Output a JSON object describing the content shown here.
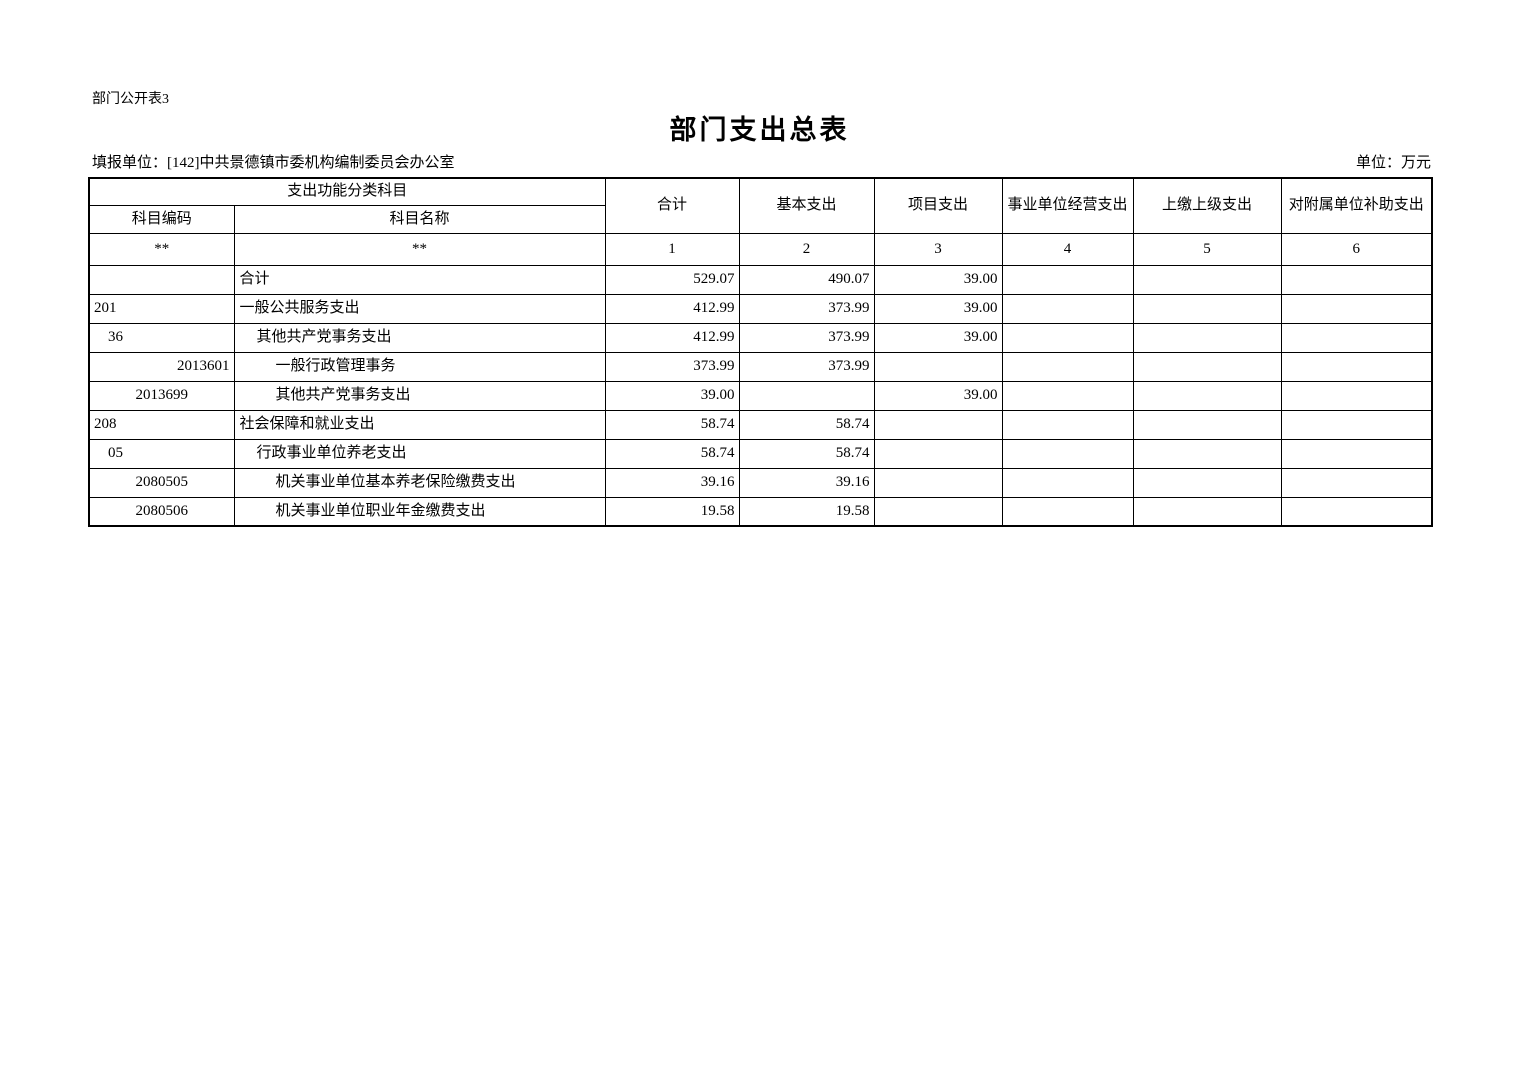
{
  "page": {
    "doc_note": "部门公开表3",
    "title": "部门支出总表",
    "filler_label": "填报单位：[142]中共景德镇市委机构编制委员会办公室",
    "unit_label": "单位：万元"
  },
  "table": {
    "header": {
      "func_group": "支出功能分类科目",
      "code": "科目编码",
      "name": "科目名称",
      "total": "合计",
      "basic": "基本支出",
      "project": "项目支出",
      "operating": "事业单位经营支出",
      "upper": "上缴上级支出",
      "subsidy": "对附属单位补助支出"
    },
    "index_row": [
      "**",
      "**",
      "1",
      "2",
      "3",
      "4",
      "5",
      "6"
    ],
    "rows": [
      {
        "code": "",
        "name": "合计",
        "indent": 0,
        "code_align": "left",
        "values": [
          "529.07",
          "490.07",
          "39.00",
          "",
          "",
          ""
        ]
      },
      {
        "code": "201",
        "name": "一般公共服务支出",
        "indent": 0,
        "code_align": "left",
        "values": [
          "412.99",
          "373.99",
          "39.00",
          "",
          "",
          ""
        ]
      },
      {
        "code": "36",
        "name": "其他共产党事务支出",
        "indent": 1,
        "code_align": "indent",
        "values": [
          "412.99",
          "373.99",
          "39.00",
          "",
          "",
          ""
        ]
      },
      {
        "code": "2013601",
        "name": "一般行政管理事务",
        "indent": 2,
        "code_align": "right",
        "values": [
          "373.99",
          "373.99",
          "",
          "",
          "",
          ""
        ]
      },
      {
        "code": "2013699",
        "name": "其他共产党事务支出",
        "indent": 2,
        "code_align": "center",
        "values": [
          "39.00",
          "",
          "39.00",
          "",
          "",
          ""
        ]
      },
      {
        "code": "208",
        "name": "社会保障和就业支出",
        "indent": 0,
        "code_align": "left",
        "values": [
          "58.74",
          "58.74",
          "",
          "",
          "",
          ""
        ]
      },
      {
        "code": "05",
        "name": "行政事业单位养老支出",
        "indent": 1,
        "code_align": "indent",
        "values": [
          "58.74",
          "58.74",
          "",
          "",
          "",
          ""
        ]
      },
      {
        "code": "2080505",
        "name": "机关事业单位基本养老保险缴费支出",
        "indent": 2,
        "code_align": "center",
        "values": [
          "39.16",
          "39.16",
          "",
          "",
          "",
          ""
        ]
      },
      {
        "code": "2080506",
        "name": "机关事业单位职业年金缴费支出",
        "indent": 2,
        "code_align": "center",
        "values": [
          "19.58",
          "19.58",
          "",
          "",
          "",
          ""
        ]
      }
    ]
  }
}
